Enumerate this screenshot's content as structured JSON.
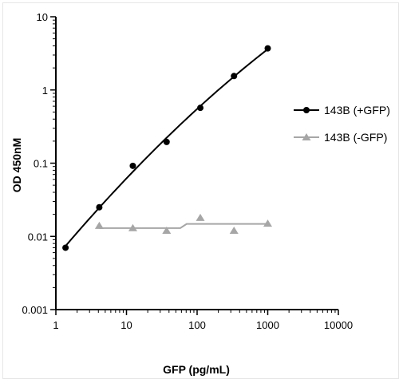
{
  "chart_data": {
    "type": "scatter",
    "title": "",
    "xlabel": "GFP (pg/mL)",
    "ylabel": "OD 450nM",
    "x_scale": "log",
    "y_scale": "log",
    "xlim": [
      1,
      10000
    ],
    "ylim": [
      0.001,
      10
    ],
    "x_ticks": [
      "1",
      "10",
      "100",
      "1000",
      "10000"
    ],
    "y_ticks": [
      "0.001",
      "0.01",
      "0.1",
      "1",
      "10"
    ],
    "grid": false,
    "legend_position": "right",
    "series": [
      {
        "name": "143B (+GFP)",
        "marker": "circle",
        "color": "#000000",
        "x": [
          1.37,
          4.12,
          12.3,
          37.0,
          111,
          333,
          1000
        ],
        "y": [
          0.007,
          0.025,
          0.092,
          0.195,
          0.57,
          1.55,
          3.7
        ],
        "fit": "curve"
      },
      {
        "name": "143B (-GFP)",
        "marker": "triangle",
        "color": "#a6a6a6",
        "x": [
          4.12,
          12.3,
          37.0,
          111,
          333,
          1000
        ],
        "y": [
          0.014,
          0.013,
          0.012,
          0.018,
          0.012,
          0.015
        ],
        "fit": "step"
      }
    ]
  }
}
